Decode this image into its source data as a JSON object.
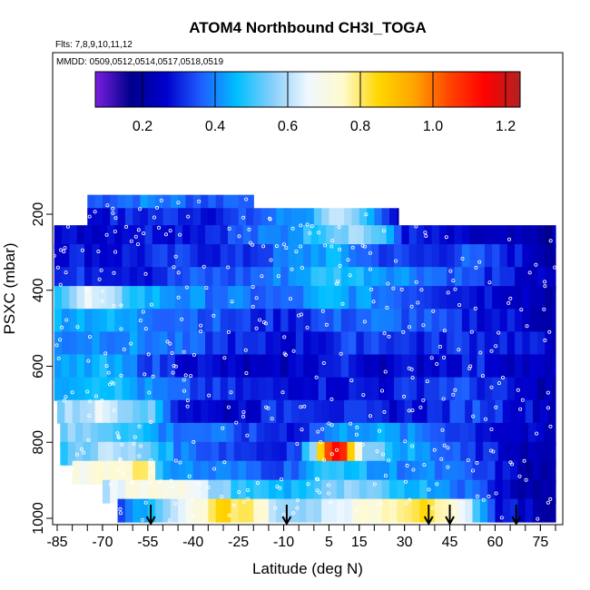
{
  "chart_data": {
    "type": "heatmap",
    "title": "ATOM4 Northbound CH3I_TOGA",
    "notes": {
      "flights": "Flts: 7,8,9,10,11,12",
      "dates": "MMDD: 0509,0512,0514,0517,0518,0519"
    },
    "xlabel": "Latitude (deg N)",
    "ylabel": "PSXC (mbar)",
    "xlim": [
      -88,
      88
    ],
    "ylim": [
      1020,
      0
    ],
    "xticks": [
      -85,
      -70,
      -55,
      -40,
      -25,
      -10,
      5,
      15,
      30,
      45,
      60,
      75
    ],
    "yticks": [
      200,
      400,
      600,
      800,
      1000
    ],
    "colorbar": {
      "range": [
        0.07,
        1.24
      ],
      "ticks": [
        0.2,
        0.4,
        0.6,
        0.8,
        1.0,
        1.2
      ],
      "tick_labels": [
        "0.2",
        "0.4",
        "0.6",
        "0.8",
        "1.0",
        "1.2"
      ],
      "colors": [
        "#7a1fe0",
        "#00008b",
        "#0000cd",
        "#1f5fff",
        "#00bfff",
        "#87cefa",
        "#f0f8ff",
        "#fffacd",
        "#ffd700",
        "#ffa500",
        "#ff4500",
        "#ff0000",
        "#b22222"
      ]
    },
    "grid": false,
    "profile_markers_lat": [
      -54,
      -9,
      38,
      45,
      67
    ],
    "layers": [
      {
        "p": 980,
        "lat": [
          -65,
          80
        ],
        "values": [
          [
            -65,
            0.35
          ],
          [
            -55,
            0.45
          ],
          [
            -45,
            0.6
          ],
          [
            -30,
            0.85
          ],
          [
            -20,
            0.8
          ],
          [
            -10,
            0.55
          ],
          [
            -5,
            0.55
          ],
          [
            5,
            0.65
          ],
          [
            15,
            0.7
          ],
          [
            30,
            0.82
          ],
          [
            45,
            0.8
          ],
          [
            55,
            0.5
          ],
          [
            60,
            0.3
          ],
          [
            70,
            0.25
          ],
          [
            80,
            0.2
          ]
        ]
      },
      {
        "p": 930,
        "lat": [
          -70,
          80
        ],
        "values": [
          [
            -70,
            0.6
          ],
          [
            -60,
            0.7
          ],
          [
            -50,
            0.75
          ],
          [
            -40,
            0.65
          ],
          [
            -25,
            0.5
          ],
          [
            -10,
            0.45
          ],
          [
            0,
            0.5
          ],
          [
            10,
            0.55
          ],
          [
            25,
            0.5
          ],
          [
            40,
            0.45
          ],
          [
            55,
            0.35
          ],
          [
            65,
            0.25
          ],
          [
            80,
            0.2
          ]
        ]
      },
      {
        "p": 880,
        "lat": [
          -80,
          80
        ],
        "values": [
          [
            -80,
            0.7
          ],
          [
            -65,
            0.75
          ],
          [
            -55,
            0.8
          ],
          [
            -50,
            0.45
          ],
          [
            -40,
            0.4
          ],
          [
            -25,
            0.38
          ],
          [
            -10,
            0.35
          ],
          [
            0,
            0.45
          ],
          [
            10,
            0.5
          ],
          [
            20,
            0.42
          ],
          [
            35,
            0.4
          ],
          [
            50,
            0.35
          ],
          [
            60,
            0.3
          ],
          [
            70,
            0.22
          ],
          [
            80,
            0.2
          ]
        ]
      },
      {
        "p": 830,
        "lat": [
          -84,
          80
        ],
        "values": [
          [
            -84,
            0.5
          ],
          [
            -70,
            0.6
          ],
          [
            -55,
            0.55
          ],
          [
            -45,
            0.4
          ],
          [
            -30,
            0.35
          ],
          [
            -15,
            0.3
          ],
          [
            -5,
            0.35
          ],
          [
            0,
            0.6
          ],
          [
            5,
            1.1
          ],
          [
            8,
            1.2
          ],
          [
            12,
            0.9
          ],
          [
            18,
            0.55
          ],
          [
            30,
            0.45
          ],
          [
            45,
            0.35
          ],
          [
            60,
            0.28
          ],
          [
            80,
            0.2
          ]
        ]
      },
      {
        "p": 780,
        "lat": [
          -84,
          80
        ],
        "values": [
          [
            -84,
            0.55
          ],
          [
            -70,
            0.55
          ],
          [
            -60,
            0.5
          ],
          [
            -50,
            0.4
          ],
          [
            -35,
            0.38
          ],
          [
            -20,
            0.32
          ],
          [
            -5,
            0.3
          ],
          [
            5,
            0.4
          ],
          [
            15,
            0.45
          ],
          [
            30,
            0.4
          ],
          [
            45,
            0.35
          ],
          [
            60,
            0.28
          ],
          [
            80,
            0.22
          ]
        ]
      },
      {
        "p": 720,
        "lat": [
          -85,
          80
        ],
        "values": [
          [
            -85,
            0.55
          ],
          [
            -70,
            0.65
          ],
          [
            -55,
            0.55
          ],
          [
            -45,
            0.3
          ],
          [
            -30,
            0.25
          ],
          [
            -15,
            0.3
          ],
          [
            -5,
            0.35
          ],
          [
            10,
            0.3
          ],
          [
            25,
            0.28
          ],
          [
            40,
            0.3
          ],
          [
            55,
            0.35
          ],
          [
            65,
            0.3
          ],
          [
            80,
            0.25
          ]
        ]
      },
      {
        "p": 660,
        "lat": [
          -86,
          80
        ],
        "values": [
          [
            -86,
            0.45
          ],
          [
            -70,
            0.5
          ],
          [
            -55,
            0.4
          ],
          [
            -45,
            0.35
          ],
          [
            -30,
            0.3
          ],
          [
            -15,
            0.28
          ],
          [
            0,
            0.3
          ],
          [
            15,
            0.28
          ],
          [
            30,
            0.3
          ],
          [
            45,
            0.35
          ],
          [
            60,
            0.3
          ],
          [
            70,
            0.25
          ],
          [
            80,
            0.22
          ]
        ]
      },
      {
        "p": 600,
        "lat": [
          -86,
          80
        ],
        "values": [
          [
            -86,
            0.4
          ],
          [
            -70,
            0.45
          ],
          [
            -55,
            0.35
          ],
          [
            -45,
            0.3
          ],
          [
            -30,
            0.25
          ],
          [
            -15,
            0.22
          ],
          [
            0,
            0.28
          ],
          [
            10,
            0.3
          ],
          [
            25,
            0.25
          ],
          [
            40,
            0.28
          ],
          [
            55,
            0.3
          ],
          [
            70,
            0.25
          ],
          [
            80,
            0.22
          ]
        ]
      },
      {
        "p": 540,
        "lat": [
          -86,
          80
        ],
        "values": [
          [
            -86,
            0.4
          ],
          [
            -70,
            0.42
          ],
          [
            -55,
            0.4
          ],
          [
            -40,
            0.35
          ],
          [
            -25,
            0.3
          ],
          [
            -10,
            0.28
          ],
          [
            5,
            0.3
          ],
          [
            20,
            0.35
          ],
          [
            35,
            0.3
          ],
          [
            50,
            0.32
          ],
          [
            65,
            0.3
          ],
          [
            80,
            0.25
          ]
        ]
      },
      {
        "p": 480,
        "lat": [
          -86,
          80
        ],
        "values": [
          [
            -86,
            0.45
          ],
          [
            -70,
            0.45
          ],
          [
            -55,
            0.4
          ],
          [
            -40,
            0.38
          ],
          [
            -25,
            0.32
          ],
          [
            -10,
            0.3
          ],
          [
            5,
            0.35
          ],
          [
            20,
            0.38
          ],
          [
            35,
            0.35
          ],
          [
            50,
            0.3
          ],
          [
            65,
            0.28
          ],
          [
            80,
            0.22
          ]
        ]
      },
      {
        "p": 420,
        "lat": [
          -86,
          80
        ],
        "values": [
          [
            -86,
            0.5
          ],
          [
            -75,
            0.65
          ],
          [
            -65,
            0.55
          ],
          [
            -55,
            0.45
          ],
          [
            -40,
            0.4
          ],
          [
            -25,
            0.38
          ],
          [
            -10,
            0.35
          ],
          [
            5,
            0.45
          ],
          [
            20,
            0.4
          ],
          [
            35,
            0.35
          ],
          [
            50,
            0.3
          ],
          [
            65,
            0.28
          ],
          [
            80,
            0.22
          ]
        ]
      },
      {
        "p": 370,
        "lat": [
          -86,
          80
        ],
        "values": [
          [
            -86,
            0.3
          ],
          [
            -70,
            0.32
          ],
          [
            -55,
            0.3
          ],
          [
            -40,
            0.35
          ],
          [
            -25,
            0.35
          ],
          [
            -10,
            0.4
          ],
          [
            5,
            0.5
          ],
          [
            20,
            0.45
          ],
          [
            35,
            0.4
          ],
          [
            50,
            0.35
          ],
          [
            65,
            0.28
          ],
          [
            80,
            0.22
          ]
        ]
      },
      {
        "p": 310,
        "lat": [
          -86,
          80
        ],
        "values": [
          [
            -86,
            0.3
          ],
          [
            -70,
            0.28
          ],
          [
            -55,
            0.3
          ],
          [
            -40,
            0.32
          ],
          [
            -25,
            0.3
          ],
          [
            -10,
            0.38
          ],
          [
            5,
            0.45
          ],
          [
            20,
            0.35
          ],
          [
            35,
            0.3
          ],
          [
            50,
            0.35
          ],
          [
            65,
            0.3
          ],
          [
            80,
            0.22
          ]
        ]
      },
      {
        "p": 260,
        "lat": [
          -86,
          80
        ],
        "values": [
          [
            -86,
            0.25
          ],
          [
            -70,
            0.28
          ],
          [
            -55,
            0.3
          ],
          [
            -40,
            0.3
          ],
          [
            -25,
            0.35
          ],
          [
            -10,
            0.4
          ],
          [
            5,
            0.55
          ],
          [
            15,
            0.6
          ],
          [
            25,
            0.45
          ],
          [
            30,
            0.3
          ],
          [
            45,
            0.25
          ],
          [
            60,
            0.22
          ],
          [
            80,
            0.2
          ]
        ]
      },
      {
        "p": 215,
        "lat": [
          -75,
          28
        ],
        "values": [
          [
            -75,
            0.28
          ],
          [
            -60,
            0.3
          ],
          [
            -45,
            0.32
          ],
          [
            -30,
            0.3
          ],
          [
            -20,
            0.35
          ],
          [
            -10,
            0.4
          ],
          [
            0,
            0.45
          ],
          [
            5,
            0.65
          ],
          [
            15,
            0.5
          ],
          [
            22,
            0.35
          ],
          [
            28,
            0.25
          ]
        ]
      },
      {
        "p": 180,
        "lat": [
          -75,
          -20
        ],
        "values": [
          [
            -75,
            0.35
          ],
          [
            -65,
            0.38
          ],
          [
            -55,
            0.4
          ],
          [
            -45,
            0.38
          ],
          [
            -35,
            0.35
          ],
          [
            -25,
            0.38
          ],
          [
            -20,
            0.4
          ]
        ]
      }
    ]
  }
}
